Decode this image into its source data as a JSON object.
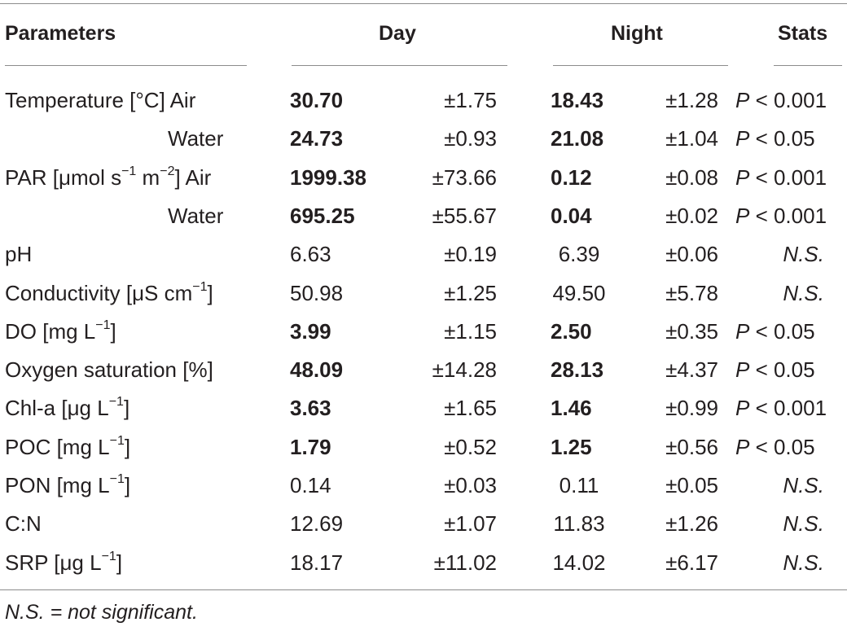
{
  "headers": {
    "parameters": "Parameters",
    "day": "Day",
    "night": "Night",
    "stats": "Stats"
  },
  "rows": [
    {
      "param": "Temperature [°C] Air",
      "day_mean": "30.70",
      "day_sd": "±1.75",
      "night_mean": "18.43",
      "night_sd": "±1.28",
      "stats_p": "P",
      "stats_val": " < 0.001",
      "bold": true
    },
    {
      "param": "Water",
      "day_mean": "24.73",
      "day_sd": "±0.93",
      "night_mean": "21.08",
      "night_sd": "±1.04",
      "stats_p": "P",
      "stats_val": " < 0.05",
      "bold": true,
      "indent": true
    },
    {
      "param": "PAR [μmol s",
      "param_sup1": "−1",
      "param_mid": " m",
      "param_sup2": "−2",
      "param_end": "] Air",
      "day_mean": "1999.38",
      "day_sd": "±73.66",
      "night_mean": "0.12",
      "night_sd": "±0.08",
      "stats_p": "P",
      "stats_val": " < 0.001",
      "bold": true
    },
    {
      "param": "Water",
      "day_mean": "695.25",
      "day_sd": "±55.67",
      "night_mean": "0.04",
      "night_sd": "±0.02",
      "stats_p": "P",
      "stats_val": " < 0.001",
      "bold": true,
      "indent": true
    },
    {
      "param": "pH",
      "day_mean": "6.63",
      "day_sd": "±0.19",
      "night_mean": "6.39",
      "night_sd": "±0.06",
      "stats_ns": "N.S.",
      "bold": false
    },
    {
      "param": "Conductivity [μS cm",
      "param_sup1": "−1",
      "param_end": "]",
      "day_mean": "50.98",
      "day_sd": "±1.25",
      "night_mean": "49.50",
      "night_sd": "±5.78",
      "stats_ns": "N.S.",
      "bold": false
    },
    {
      "param": "DO [mg L",
      "param_sup1": "−1",
      "param_end": "]",
      "day_mean": "3.99",
      "day_sd": "±1.15",
      "night_mean": "2.50",
      "night_sd": "±0.35",
      "stats_p": "P",
      "stats_val": " < 0.05",
      "bold": true
    },
    {
      "param": "Oxygen saturation [%]",
      "day_mean": "48.09",
      "day_sd": "±14.28",
      "night_mean": "28.13",
      "night_sd": "±4.37",
      "stats_p": "P",
      "stats_val": " < 0.05",
      "bold": true
    },
    {
      "param": "Chl-a [μg L",
      "param_sup1": "−1",
      "param_end": "]",
      "day_mean": "3.63",
      "day_sd": "±1.65",
      "night_mean": "1.46",
      "night_sd": "±0.99",
      "stats_p": "P",
      "stats_val": " < 0.001",
      "bold": true
    },
    {
      "param": "POC [mg L",
      "param_sup1": "−1",
      "param_end": "]",
      "day_mean": "1.79",
      "day_sd": "±0.52",
      "night_mean": "1.25",
      "night_sd": "±0.56",
      "stats_p": "P",
      "stats_val": " < 0.05",
      "bold": true
    },
    {
      "param": "PON [mg L",
      "param_sup1": "−1",
      "param_end": "]",
      "day_mean": "0.14",
      "day_sd": "±0.03",
      "night_mean": "0.11",
      "night_sd": "±0.05",
      "stats_ns": "N.S.",
      "bold": false
    },
    {
      "param": "C:N",
      "day_mean": "12.69",
      "day_sd": "±1.07",
      "night_mean": "11.83",
      "night_sd": "±1.26",
      "stats_ns": "N.S.",
      "bold": false
    },
    {
      "param": "SRP [μg L",
      "param_sup1": "−1",
      "param_end": "]",
      "day_mean": "18.17",
      "day_sd": "±11.02",
      "night_mean": "14.02",
      "night_sd": "±6.17",
      "stats_ns": "N.S.",
      "bold": false
    }
  ],
  "footnote": "N.S. = not significant."
}
